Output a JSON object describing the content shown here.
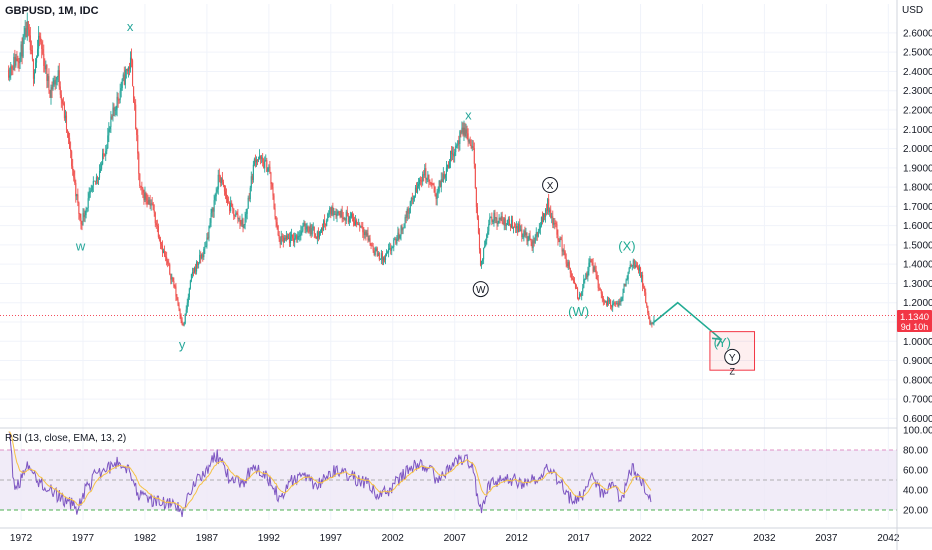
{
  "header": {
    "title": "GBPUSD, 1M, IDC",
    "currency": "USD"
  },
  "price_tag": {
    "value": "1.1340",
    "countdown": "9d 10h"
  },
  "colors": {
    "up": "#26a69a",
    "down": "#ef5350",
    "wave_green": "#26a69a",
    "wave_teal": "#22ab94",
    "circle": "#131722",
    "rsi_line": "#7e57c2",
    "rsi_ema": "#f6c244",
    "rsi_band": "#ede7f6",
    "target_box": "#f23645",
    "price_line": "#f23645"
  },
  "chart_data": [
    {
      "type": "candlestick",
      "title": "GBPUSD, 1M, IDC",
      "ylabel": "USD",
      "ylim": [
        0.55,
        2.75
      ],
      "yticks": [
        "2.6000",
        "2.5000",
        "2.4000",
        "2.3000",
        "2.2000",
        "2.1000",
        "2.0000",
        "1.9000",
        "1.8000",
        "1.7000",
        "1.6000",
        "1.5000",
        "1.4000",
        "1.3000",
        "1.2000",
        "1.1000",
        "1.0000",
        "0.9000",
        "0.8000",
        "0.7000",
        "0.6000"
      ],
      "xlim": [
        1970.3,
        2042.7
      ],
      "xticks": [
        "1972",
        "1977",
        "1982",
        "1987",
        "1992",
        "1997",
        "2002",
        "2007",
        "2012",
        "2017",
        "2022",
        "2027",
        "2032",
        "2037",
        "2042"
      ],
      "price_path": [
        [
          1971.0,
          2.41
        ],
        [
          1972.0,
          2.5
        ],
        [
          1972.5,
          2.62
        ],
        [
          1973.0,
          2.4
        ],
        [
          1973.5,
          2.57
        ],
        [
          1974.3,
          2.3
        ],
        [
          1975.0,
          2.38
        ],
        [
          1975.8,
          2.05
        ],
        [
          1976.8,
          1.61
        ],
        [
          1977.5,
          1.74
        ],
        [
          1978.5,
          1.92
        ],
        [
          1979.5,
          2.2
        ],
        [
          1980.5,
          2.4
        ],
        [
          1980.9,
          2.45
        ],
        [
          1981.6,
          1.78
        ],
        [
          1982.5,
          1.72
        ],
        [
          1983.5,
          1.46
        ],
        [
          1984.3,
          1.3
        ],
        [
          1985.1,
          1.07
        ],
        [
          1985.8,
          1.35
        ],
        [
          1986.8,
          1.47
        ],
        [
          1988.0,
          1.86
        ],
        [
          1988.8,
          1.7
        ],
        [
          1990.0,
          1.6
        ],
        [
          1990.9,
          1.96
        ],
        [
          1992.0,
          1.9
        ],
        [
          1992.8,
          1.52
        ],
        [
          1994.0,
          1.53
        ],
        [
          1995.0,
          1.6
        ],
        [
          1996.0,
          1.55
        ],
        [
          1997.0,
          1.68
        ],
        [
          1998.0,
          1.66
        ],
        [
          1999.5,
          1.6
        ],
        [
          2000.5,
          1.47
        ],
        [
          2001.3,
          1.42
        ],
        [
          2002.5,
          1.55
        ],
        [
          2003.5,
          1.72
        ],
        [
          2004.5,
          1.88
        ],
        [
          2005.5,
          1.76
        ],
        [
          2006.8,
          1.98
        ],
        [
          2007.8,
          2.1
        ],
        [
          2008.5,
          1.98
        ],
        [
          2009.1,
          1.37
        ],
        [
          2009.8,
          1.65
        ],
        [
          2011.0,
          1.62
        ],
        [
          2012.0,
          1.6
        ],
        [
          2013.3,
          1.5
        ],
        [
          2014.5,
          1.71
        ],
        [
          2015.5,
          1.52
        ],
        [
          2016.5,
          1.32
        ],
        [
          2017.0,
          1.22
        ],
        [
          2018.0,
          1.42
        ],
        [
          2019.0,
          1.21
        ],
        [
          2020.2,
          1.18
        ],
        [
          2021.3,
          1.42
        ],
        [
          2022.0,
          1.35
        ],
        [
          2022.8,
          1.07
        ],
        [
          2023.1,
          1.134
        ]
      ],
      "projection": [
        [
          2023.1,
          1.1
        ],
        [
          2025.0,
          1.2
        ],
        [
          2028.5,
          1.01
        ]
      ],
      "current_price": 1.134,
      "target_box": {
        "x": [
          2027.6,
          2031.2
        ],
        "y": [
          0.85,
          1.05
        ]
      },
      "annotations": [
        {
          "text": "x",
          "x": 1980.8,
          "y": 2.61,
          "style": "green"
        },
        {
          "text": "w",
          "x": 1976.8,
          "y": 1.47,
          "style": "green"
        },
        {
          "text": "y",
          "x": 1985.0,
          "y": 0.96,
          "style": "green"
        },
        {
          "text": "x",
          "x": 2008.1,
          "y": 2.15,
          "style": "green"
        },
        {
          "text": "X",
          "x": 2014.7,
          "y": 1.79,
          "style": "circle"
        },
        {
          "text": "W",
          "x": 2009.1,
          "y": 1.25,
          "style": "circle"
        },
        {
          "text": "(X)",
          "x": 2020.9,
          "y": 1.47,
          "style": "teal"
        },
        {
          "text": "(W)",
          "x": 2017.0,
          "y": 1.13,
          "style": "teal"
        },
        {
          "text": "(Y)",
          "x": 2028.6,
          "y": 0.97,
          "style": "teal"
        },
        {
          "text": "Y",
          "x": 2029.4,
          "y": 0.898,
          "style": "circle"
        },
        {
          "text": "Z",
          "x": 2029.4,
          "y": 0.828,
          "style": "small"
        }
      ]
    },
    {
      "type": "line",
      "title": "RSI (13, close, EMA, 13, 2)",
      "ylim": [
        10,
        100
      ],
      "yticks": [
        "100.00",
        "80.00",
        "60.00",
        "40.00",
        "20.00"
      ],
      "band": [
        20,
        80
      ],
      "midline": 50,
      "rsi_path": [
        [
          1971.0,
          98
        ],
        [
          1971.5,
          40
        ],
        [
          1972.5,
          62
        ],
        [
          1973.5,
          48
        ],
        [
          1974.5,
          38
        ],
        [
          1975.5,
          30
        ],
        [
          1976.5,
          22
        ],
        [
          1977.2,
          40
        ],
        [
          1978.0,
          55
        ],
        [
          1979.0,
          62
        ],
        [
          1980.0,
          68
        ],
        [
          1980.8,
          60
        ],
        [
          1981.5,
          35
        ],
        [
          1982.5,
          30
        ],
        [
          1983.5,
          28
        ],
        [
          1984.5,
          22
        ],
        [
          1985.1,
          18
        ],
        [
          1985.8,
          45
        ],
        [
          1986.8,
          58
        ],
        [
          1987.8,
          75
        ],
        [
          1988.8,
          52
        ],
        [
          1989.8,
          45
        ],
        [
          1990.8,
          66
        ],
        [
          1991.8,
          55
        ],
        [
          1992.8,
          33
        ],
        [
          1993.8,
          48
        ],
        [
          1994.8,
          55
        ],
        [
          1995.8,
          45
        ],
        [
          1996.8,
          56
        ],
        [
          1997.8,
          60
        ],
        [
          1998.8,
          52
        ],
        [
          1999.8,
          48
        ],
        [
          2000.8,
          35
        ],
        [
          2001.8,
          40
        ],
        [
          2002.8,
          55
        ],
        [
          2003.8,
          66
        ],
        [
          2004.8,
          62
        ],
        [
          2005.8,
          48
        ],
        [
          2006.8,
          68
        ],
        [
          2007.8,
          72
        ],
        [
          2008.5,
          60
        ],
        [
          2009.0,
          18
        ],
        [
          2009.8,
          45
        ],
        [
          2010.8,
          52
        ],
        [
          2011.8,
          50
        ],
        [
          2012.8,
          45
        ],
        [
          2013.8,
          55
        ],
        [
          2014.6,
          62
        ],
        [
          2015.5,
          48
        ],
        [
          2016.5,
          28
        ],
        [
          2017.3,
          35
        ],
        [
          2018.0,
          58
        ],
        [
          2018.8,
          38
        ],
        [
          2019.8,
          42
        ],
        [
          2020.5,
          30
        ],
        [
          2021.2,
          62
        ],
        [
          2021.8,
          55
        ],
        [
          2022.5,
          38
        ],
        [
          2022.9,
          25
        ]
      ]
    }
  ]
}
